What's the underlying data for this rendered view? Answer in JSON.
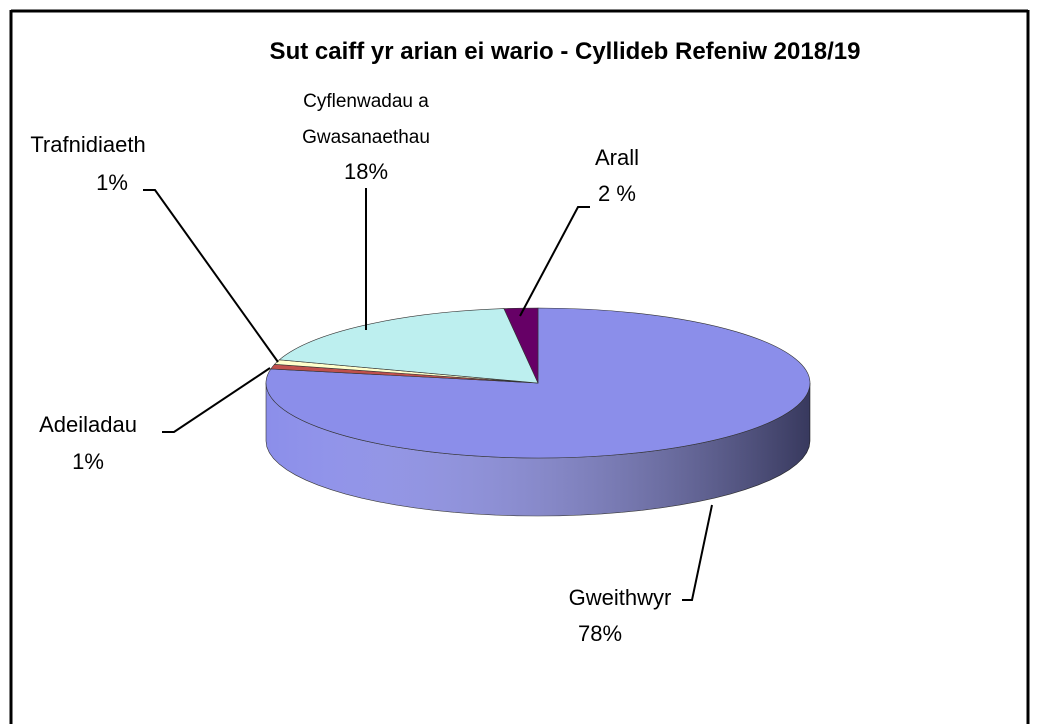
{
  "chart_data": {
    "type": "pie",
    "title": "Sut caiff yr arian ei wario - Cyllideb Refeniw 2018/19",
    "categories": [
      "Gweithwyr",
      "Adeiladau",
      "Trafnidiaeth",
      "Cyflenwadau a Gwasanaethau",
      "Arall"
    ],
    "values": [
      78,
      1,
      1,
      18,
      2
    ],
    "value_labels": [
      "78%",
      "1%",
      "1%",
      "18%",
      "2 %"
    ],
    "colors": [
      "#8b8eea",
      "#c0504d",
      "#ffffcc",
      "#bdefef",
      "#660066"
    ]
  }
}
